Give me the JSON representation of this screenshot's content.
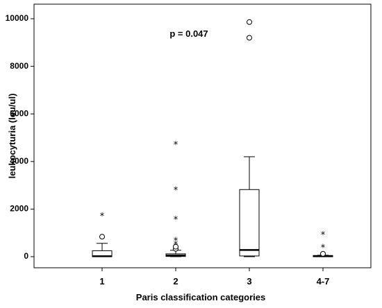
{
  "chart_data": {
    "type": "boxplot",
    "title": "",
    "xlabel": "Paris classification categories",
    "ylabel": "leukocyturia (leu/ul)",
    "ylim": [
      -600,
      10500
    ],
    "yticks": [
      0,
      2000,
      4000,
      6000,
      8000,
      10000
    ],
    "categories": [
      "1",
      "2",
      "3",
      "4-7"
    ],
    "boxes": [
      {
        "category": "1",
        "whisker_low": 0,
        "q1": 0,
        "median": 20,
        "q3": 250,
        "whisker_high": 560,
        "outliers": [
          840
        ],
        "extremes": [
          1720
        ]
      },
      {
        "category": "2",
        "whisker_low": 0,
        "q1": 10,
        "median": 50,
        "q3": 120,
        "whisker_high": 270,
        "outliers": [
          330,
          420
        ],
        "extremes": [
          520,
          680,
          1580,
          2820,
          4720
        ]
      },
      {
        "category": "3",
        "whisker_low": 0,
        "q1": 30,
        "median": 280,
        "q3": 2820,
        "whisker_high": 4200,
        "outliers": [
          9200,
          9860
        ],
        "extremes": []
      },
      {
        "category": "4-7",
        "whisker_low": 0,
        "q1": 0,
        "median": 20,
        "q3": 50,
        "whisker_high": 60,
        "outliers": [
          120
        ],
        "extremes": [
          400,
          940
        ]
      }
    ],
    "annotations": [
      {
        "text": "p = 0.047",
        "x": "2.5",
        "y": 9600
      }
    ],
    "grid": false,
    "legend": "none"
  }
}
